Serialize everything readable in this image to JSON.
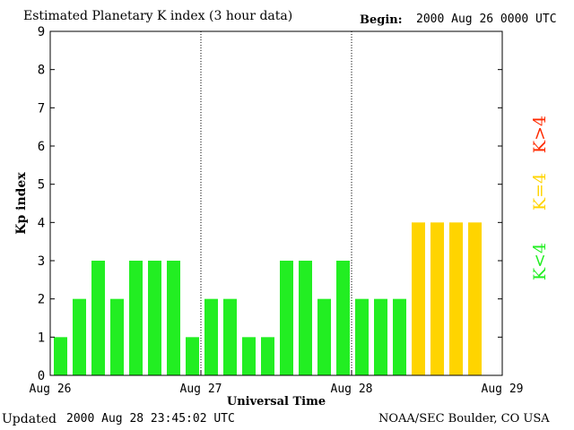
{
  "header": {
    "title": "Estimated Planetary K index (3 hour data)",
    "begin_label": "Begin:",
    "begin_value": "2000 Aug 26 0000 UTC"
  },
  "footer": {
    "updated_label": "Updated",
    "updated_value": "2000 Aug 28 23:45:02 UTC",
    "source": "NOAA/SEC Boulder, CO USA"
  },
  "legend": {
    "low": {
      "label": "K<4",
      "color": "#22ee22"
    },
    "mid": {
      "label": "K=4",
      "color": "#ffd400"
    },
    "high": {
      "label": "K>4",
      "color": "#ff2a00"
    }
  },
  "chart_data": {
    "type": "bar",
    "ylabel": "Kp index",
    "xlabel": "Universal Time",
    "ylim": [
      0,
      9
    ],
    "yticks": [
      0,
      1,
      2,
      3,
      4,
      5,
      6,
      7,
      8,
      9
    ],
    "xtick_labels": [
      "Aug 26",
      "Aug 27",
      "Aug 28",
      "Aug 29"
    ],
    "bins_per_day": 8,
    "days": 3,
    "values": [
      1,
      2,
      3,
      2,
      3,
      3,
      3,
      1,
      2,
      2,
      1,
      1,
      3,
      3,
      2,
      3,
      2,
      2,
      2,
      4,
      4,
      4,
      4
    ],
    "colors": {
      "below4": "#22ee22",
      "equal4": "#ffd400",
      "above4": "#ff2a00"
    }
  }
}
